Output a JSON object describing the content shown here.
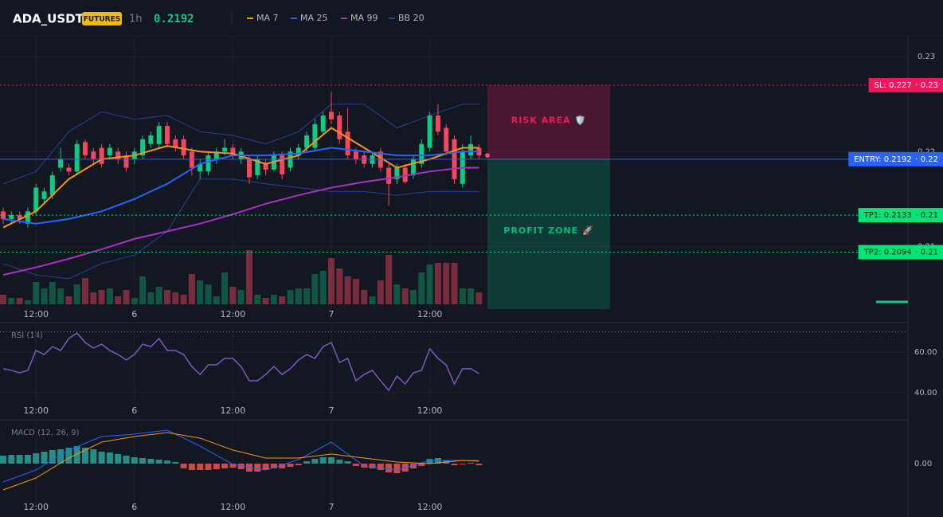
{
  "header": {
    "symbol": "ADA_USDT",
    "badge": "FUTURES",
    "interval": "1h",
    "price": "0.2192"
  },
  "chart_data": [
    {
      "type": "candlestick",
      "open": [
        0.2137,
        0.2129,
        0.2133,
        0.2124,
        0.2137,
        0.215,
        0.2154,
        0.2183,
        0.2183,
        0.2179,
        0.221,
        0.22,
        0.2204,
        0.2196,
        0.22,
        0.2196,
        0.2192,
        0.2196,
        0.2208,
        0.2208,
        0.2227,
        0.2213,
        0.2213,
        0.22,
        0.2179,
        0.2179,
        0.2192,
        0.22,
        0.2204,
        0.2192,
        0.2192,
        0.2175,
        0.2187,
        0.2181,
        0.2196,
        0.2183,
        0.2196,
        0.2204,
        0.2204,
        0.2221,
        0.2242,
        0.2238,
        0.2221,
        0.22,
        0.2196,
        0.2187,
        0.22,
        0.2183,
        0.2171,
        0.2183,
        0.2175,
        0.2187,
        0.2204,
        0.2238,
        0.2225,
        0.2213,
        0.2166,
        0.2196,
        0.2204
      ],
      "high": [
        0.2141,
        0.2137,
        0.2137,
        0.2141,
        0.2166,
        0.2162,
        0.2179,
        0.2204,
        0.2187,
        0.2212,
        0.2213,
        0.2204,
        0.2208,
        0.2208,
        0.2204,
        0.22,
        0.2204,
        0.2217,
        0.2221,
        0.2231,
        0.2231,
        0.2217,
        0.2217,
        0.2204,
        0.2192,
        0.22,
        0.2204,
        0.2213,
        0.2208,
        0.2204,
        0.2196,
        0.2196,
        0.2192,
        0.22,
        0.22,
        0.2204,
        0.2208,
        0.2221,
        0.2234,
        0.2242,
        0.2263,
        0.2242,
        0.2246,
        0.2204,
        0.22,
        0.22,
        0.2204,
        0.2187,
        0.2187,
        0.2187,
        0.2196,
        0.2213,
        0.2242,
        0.225,
        0.2229,
        0.2217,
        0.2208,
        0.2217,
        0.2208
      ],
      "low": [
        0.2124,
        0.2124,
        0.2124,
        0.212,
        0.2133,
        0.2145,
        0.215,
        0.2179,
        0.2175,
        0.2175,
        0.2192,
        0.2187,
        0.2183,
        0.2192,
        0.2187,
        0.2179,
        0.2187,
        0.2192,
        0.2204,
        0.2204,
        0.2204,
        0.22,
        0.2192,
        0.2175,
        0.2171,
        0.2175,
        0.2187,
        0.2196,
        0.2192,
        0.2187,
        0.2166,
        0.2171,
        0.2175,
        0.2179,
        0.2171,
        0.2179,
        0.2192,
        0.22,
        0.22,
        0.2217,
        0.2229,
        0.2208,
        0.2192,
        0.2187,
        0.2183,
        0.2183,
        0.2179,
        0.2143,
        0.2166,
        0.2166,
        0.2171,
        0.2183,
        0.22,
        0.2217,
        0.2196,
        0.2166,
        0.2162,
        0.2192,
        0.2192
      ],
      "close": [
        0.2129,
        0.2133,
        0.2129,
        0.2137,
        0.2162,
        0.2158,
        0.2175,
        0.2192,
        0.2179,
        0.2208,
        0.2196,
        0.2192,
        0.2187,
        0.2204,
        0.2192,
        0.2183,
        0.22,
        0.2213,
        0.2217,
        0.2227,
        0.2208,
        0.2204,
        0.2196,
        0.2183,
        0.2187,
        0.2196,
        0.22,
        0.2204,
        0.2196,
        0.22,
        0.2173,
        0.2192,
        0.2181,
        0.2196,
        0.2176,
        0.22,
        0.2204,
        0.2217,
        0.2229,
        0.2238,
        0.2234,
        0.2213,
        0.2196,
        0.2192,
        0.2187,
        0.2196,
        0.2183,
        0.2166,
        0.2183,
        0.2168,
        0.2192,
        0.2208,
        0.2238,
        0.2221,
        0.22,
        0.2171,
        0.22,
        0.2208,
        0.2196
      ],
      "volume": [
        12,
        8,
        8,
        5,
        28,
        20,
        28,
        20,
        10,
        25,
        33,
        15,
        18,
        20,
        10,
        18,
        8,
        35,
        15,
        22,
        18,
        15,
        12,
        38,
        30,
        25,
        10,
        40,
        22,
        18,
        68,
        12,
        8,
        12,
        10,
        18,
        20,
        20,
        38,
        42,
        58,
        45,
        35,
        32,
        18,
        10,
        30,
        62,
        25,
        20,
        18,
        40,
        50,
        52,
        52,
        52,
        20,
        20,
        15
      ],
      "volume_ylim": [
        0,
        100
      ],
      "up_color": "#0ecb81",
      "down_color": "#f6465d",
      "ylim": [
        0.2034,
        0.2322
      ],
      "yticks": [
        0.23,
        0.22,
        0.21
      ],
      "xticks": [
        {
          "value": 4,
          "label": "12:00"
        },
        {
          "value": 16,
          "label": "6"
        },
        {
          "value": 28,
          "label": "12:00"
        },
        {
          "value": 40,
          "label": "7"
        },
        {
          "value": 52,
          "label": "12:00"
        }
      ],
      "line_x": [
        0,
        4,
        8,
        12,
        16,
        20,
        24,
        28,
        32,
        36,
        40,
        44,
        48,
        52,
        56,
        58
      ],
      "series": [
        {
          "name": "MA 7",
          "color": "#f7931a",
          "values": [
            0.212,
            0.2137,
            0.2171,
            0.2192,
            0.2196,
            0.2206,
            0.22,
            0.2198,
            0.2187,
            0.2196,
            0.2225,
            0.2204,
            0.2183,
            0.2192,
            0.2204,
            0.2204
          ]
        },
        {
          "name": "MA 25",
          "color": "#2962ff",
          "values": [
            0.2129,
            0.2124,
            0.2129,
            0.2137,
            0.215,
            0.2166,
            0.2187,
            0.2196,
            0.2196,
            0.2198,
            0.2204,
            0.22,
            0.2196,
            0.2196,
            0.22,
            0.22
          ]
        },
        {
          "name": "MA 99",
          "color": "#ab2fc4",
          "values": [
            0.207,
            0.2078,
            0.2087,
            0.2097,
            0.2108,
            0.2116,
            0.2124,
            0.2134,
            0.2145,
            0.2154,
            0.2162,
            0.2168,
            0.2173,
            0.2179,
            0.2183,
            0.2183
          ]
        },
        {
          "name": "BB 20",
          "color": "#2a3f9a",
          "upper": [
            0.2166,
            0.2179,
            0.2221,
            0.2242,
            0.2234,
            0.2238,
            0.2221,
            0.2217,
            0.2208,
            0.2221,
            0.225,
            0.225,
            0.2225,
            0.2238,
            0.225,
            0.225
          ],
          "lower": [
            0.2082,
            0.207,
            0.2066,
            0.2082,
            0.2091,
            0.2116,
            0.2171,
            0.2171,
            0.2166,
            0.2162,
            0.2158,
            0.2158,
            0.2154,
            0.2158,
            0.2158,
            0.2158
          ]
        }
      ],
      "levels": [
        {
          "label": "SL: 0.227",
          "value": 0.227,
          "tick": "0.23",
          "color": "#f0185c"
        },
        {
          "label": "ENTRY: 0.2192",
          "value": 0.2192,
          "tick": "0.22",
          "color": "#2962ff"
        },
        {
          "label": "TP1: 0.2133",
          "value": 0.2133,
          "tick": "0.21",
          "color": "#00e676"
        },
        {
          "label": "TP2: 0.2094",
          "value": 0.2094,
          "tick": "0.21",
          "color": "#00e676"
        }
      ],
      "zones": [
        {
          "label": "RISK AREA 🛡️",
          "from": 0.227,
          "to": 0.2192,
          "color": "#f0185c"
        },
        {
          "label": "PROFIT ZONE 🚀",
          "from": 0.2192,
          "color": "#00c07a"
        }
      ]
    },
    {
      "type": "line",
      "title": "RSI (14)",
      "color": "#7e57c2",
      "values": [
        51.8,
        51.0,
        49.8,
        51.0,
        60.8,
        58.8,
        62.7,
        60.8,
        66.7,
        69.4,
        64.7,
        62.0,
        63.9,
        60.8,
        58.8,
        56.1,
        58.8,
        63.9,
        62.7,
        66.7,
        60.8,
        60.8,
        58.8,
        52.9,
        49.0,
        53.7,
        53.7,
        56.9,
        56.9,
        52.9,
        45.9,
        45.9,
        49.0,
        52.9,
        49.0,
        51.8,
        56.1,
        58.8,
        56.9,
        62.7,
        64.7,
        54.9,
        56.9,
        45.9,
        49.0,
        51.0,
        45.9,
        41.2,
        48.2,
        44.3,
        49.8,
        51.0,
        61.6,
        56.9,
        53.7,
        44.3,
        51.8,
        51.8,
        49.4
      ],
      "overbought": 70,
      "ylim": [
        35.3,
        74.5
      ],
      "yticks": [
        {
          "value": 60,
          "label": "60.00"
        },
        {
          "value": 40,
          "label": "40.00"
        }
      ]
    },
    {
      "type": "macd",
      "title": "MACD (12, 26, 9)",
      "series": [
        {
          "color": "#2962ff",
          "values": [
            -0.00115,
            -0.0004,
            0.00085,
            0.0017,
            0.00185,
            0.0021,
            0.0011,
            -5e-05,
            -0.0004,
            0.00025,
            0.00135,
            -0.00015,
            -0.0004,
            0.0002,
            0.0002,
            0.0002
          ]
        },
        {
          "color": "#f7931a",
          "values": [
            -0.00165,
            -0.0009,
            0.00035,
            0.00135,
            0.0017,
            0.00195,
            0.0016,
            0.00085,
            0.00035,
            0.00035,
            0.0006,
            0.00035,
            0.0001,
            0,
            0.0002,
            0.00015
          ]
        }
      ],
      "histogram": [
        0.0005,
        0.00055,
        0.00055,
        0.00055,
        0.00065,
        0.00075,
        0.00085,
        0.0009,
        0.001,
        0.0011,
        0.001,
        0.0009,
        0.00075,
        0.0007,
        0.0006,
        0.0005,
        0.0004,
        0.00035,
        0.0003,
        0.00025,
        0.0002,
        0.0001,
        -0.0003,
        -0.0004,
        -0.0004,
        -0.0004,
        -0.00035,
        -0.0003,
        -0.00025,
        -0.00035,
        -0.0005,
        -0.0005,
        -0.0004,
        -0.0003,
        -0.0003,
        -0.0002,
        -0.0001,
        0.00015,
        0.0003,
        0.0004,
        0.0004,
        0.00025,
        0.00015,
        -0.00015,
        -0.00025,
        -0.0003,
        -0.0004,
        -0.00055,
        -0.0006,
        -0.0005,
        -0.0003,
        -0.00015,
        0.0003,
        0.00035,
        0.0002,
        -0.0001,
        -5e-05,
        5e-05,
        -0.0001
      ],
      "up_color": "#26a69a",
      "down_color": "#ef5350",
      "ylim": [
        -0.0026,
        0.0026
      ],
      "yticks": [
        {
          "value": 0,
          "label": "0.00"
        }
      ]
    }
  ]
}
